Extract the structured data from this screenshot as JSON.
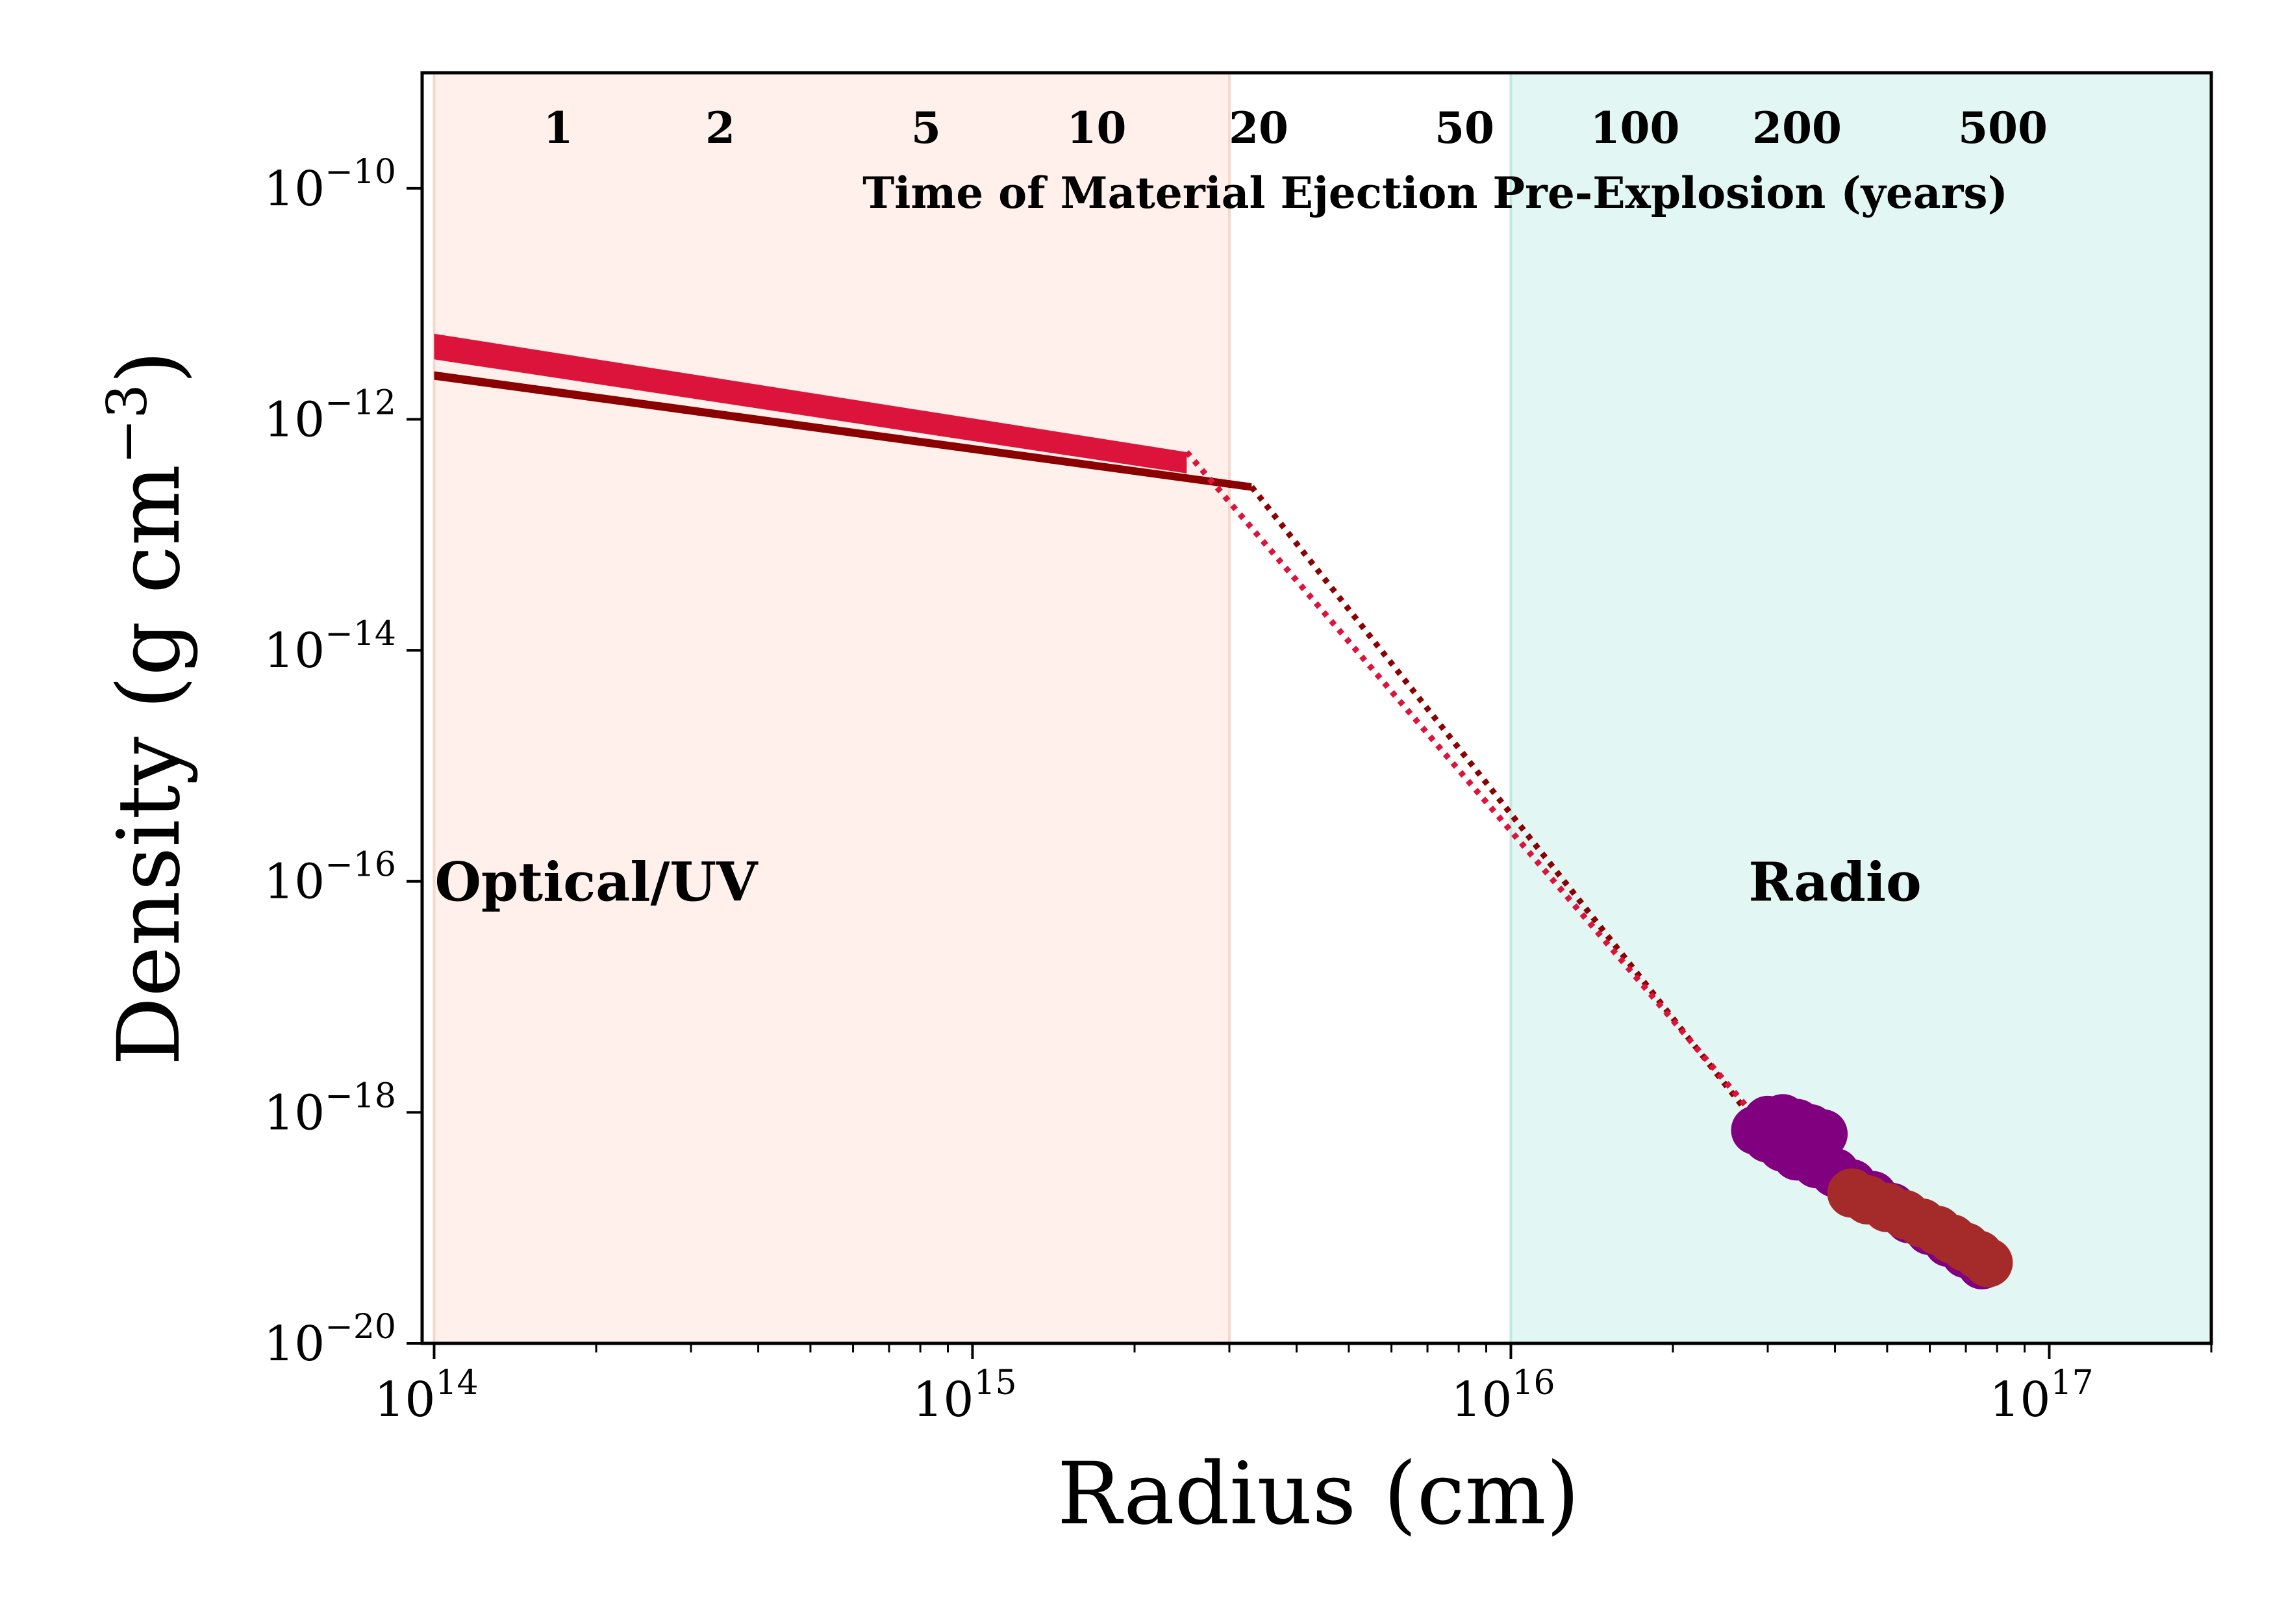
{
  "chart_data": {
    "type": "scatter",
    "xlabel": "Radius (cm)",
    "ylabel": "Density (g cm−3)",
    "xscale": "log",
    "yscale": "log",
    "xlim": [
      95000000000000.0,
      2e+17
    ],
    "ylim": [
      1e-20,
      1e-09
    ],
    "x_ticks": [
      {
        "value": 100000000000000.0,
        "base": "10",
        "exp": "14"
      },
      {
        "value": 1000000000000000.0,
        "base": "10",
        "exp": "15"
      },
      {
        "value": 1e+16,
        "base": "10",
        "exp": "16"
      },
      {
        "value": 1e+17,
        "base": "10",
        "exp": "17"
      }
    ],
    "y_ticks": [
      {
        "value": 1e-10,
        "base": "10",
        "exp": "−10"
      },
      {
        "value": 1e-12,
        "base": "10",
        "exp": "−12"
      },
      {
        "value": 1e-14,
        "base": "10",
        "exp": "−14"
      },
      {
        "value": 1e-16,
        "base": "10",
        "exp": "−16"
      },
      {
        "value": 1e-18,
        "base": "10",
        "exp": "−18"
      },
      {
        "value": 1e-20,
        "base": "10",
        "exp": "−20"
      }
    ],
    "top_axis": {
      "title": "Time of Material Ejection Pre-Explosion (years)",
      "labels": [
        {
          "text": "1",
          "x": 170000000000000.0
        },
        {
          "text": "2",
          "x": 340000000000000.0
        },
        {
          "text": "5",
          "x": 820000000000000.0
        },
        {
          "text": "10",
          "x": 1700000000000000.0
        },
        {
          "text": "20",
          "x": 3400000000000000.0
        },
        {
          "text": "50",
          "x": 8200000000000000.0
        },
        {
          "text": "100",
          "x": 1.7e+16
        },
        {
          "text": "200",
          "x": 3.4e+16
        },
        {
          "text": "500",
          "x": 8.2e+16
        }
      ]
    },
    "regions": [
      {
        "label": "Optical/UV",
        "x": [
          100000000000000.0,
          3000000000000000.0
        ],
        "color": "#fff0eb",
        "edge": "#f5d8cc",
        "label_x": 200000000000000.0,
        "label_y": 1e-16
      },
      {
        "label": "Radio",
        "x": [
          1e+16,
          2e+17
        ],
        "color": "#e2f7f3",
        "edge": "#bfe8df",
        "label_x": 4e+16,
        "label_y": 1e-16
      }
    ],
    "bands": [
      {
        "name": "",
        "color": "#dc143c",
        "x": [
          100000000000000.0,
          2500000000000000.0
        ],
        "y_upper": [
          5.5e-12,
          5.2e-13
        ],
        "y_lower": [
          3.3e-12,
          3.4e-13
        ]
      },
      {
        "name": "",
        "color": "#8b0000",
        "x": [
          100000000000000.0,
          3300000000000000.0
        ],
        "y_upper": [
          2.6e-12,
          2.8e-13
        ],
        "y_lower": [
          2.2e-12,
          2.4e-13
        ]
      }
    ],
    "dotted_lines": [
      {
        "color": "#8b0000",
        "x": [
          3300000000000000.0,
          2.8e+16
        ],
        "y": [
          2.6e-13,
          9e-19
        ]
      },
      {
        "color": "#dc143c",
        "x": [
          2500000000000000.0,
          2.8e+16
        ],
        "y": [
          5.2e-13,
          1e-18
        ]
      }
    ],
    "series": [
      {
        "name": "",
        "color": "#800080",
        "x": [
          2.85e+16,
          3e+16,
          3.2e+16,
          3.4e+16,
          3.6e+16,
          3.8e+16,
          3e+16,
          3.2e+16,
          3.4e+16,
          3.7e+16,
          4e+16,
          4.3e+16,
          4.7e+16,
          5.1e+16,
          5.5e+16,
          6e+16,
          6.5e+16,
          7e+16,
          7.5e+16
        ],
        "y": [
          7e-19,
          8.5e-19,
          8.8e-19,
          8e-19,
          7.2e-19,
          6.5e-19,
          6e-19,
          5e-19,
          4.2e-19,
          3.6e-19,
          3e-19,
          2.4e-19,
          1.9e-19,
          1.5e-19,
          1.2e-19,
          9.5e-20,
          7.5e-20,
          6e-20,
          4.8e-20
        ]
      },
      {
        "name": "",
        "color": "#a52a2a",
        "x": [
          4.3e+16,
          4.6e+16,
          5e+16,
          5.4e+16,
          5.8e+16,
          6.2e+16,
          6.6e+16,
          7e+16,
          7.4e+16,
          7.7e+16
        ],
        "y": [
          2e-19,
          1.75e-19,
          1.5e-19,
          1.3e-19,
          1.1e-19,
          9.5e-20,
          8e-20,
          6.8e-20,
          5.8e-20,
          5e-20
        ]
      }
    ]
  }
}
